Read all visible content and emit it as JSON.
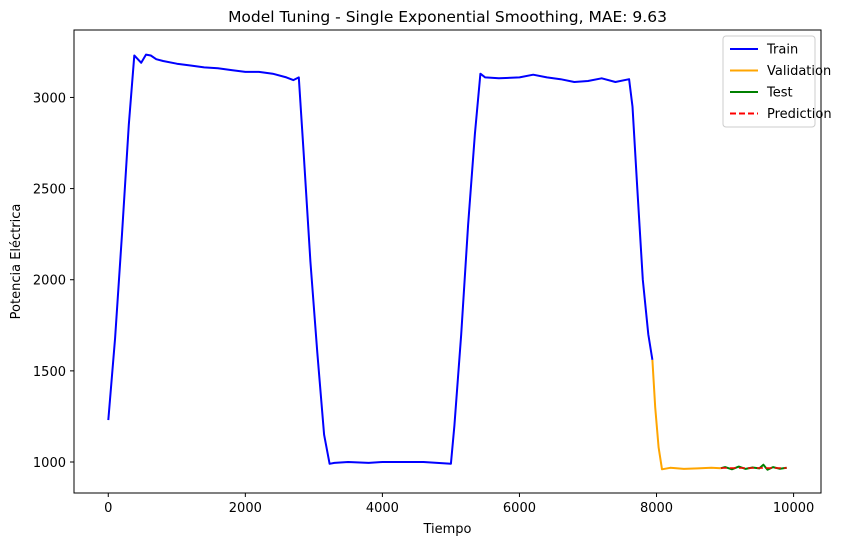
{
  "chart_data": {
    "type": "line",
    "title": "Model Tuning - Single Exponential Smoothing, MAE: 9.63",
    "xlabel": "Tiempo",
    "ylabel": "Potencia Eléctrica",
    "xlim": [
      -500,
      10400
    ],
    "ylim": [
      830,
      3370
    ],
    "xticks": [
      0,
      2000,
      4000,
      6000,
      8000,
      10000
    ],
    "yticks": [
      1000,
      1500,
      2000,
      2500,
      3000
    ],
    "grid": false,
    "legend_position": "top-right",
    "series": [
      {
        "name": "Train",
        "color": "#0000ff",
        "style": "solid",
        "x": [
          0,
          100,
          200,
          300,
          380,
          420,
          480,
          550,
          620,
          700,
          800,
          1000,
          1200,
          1400,
          1600,
          1800,
          2000,
          2200,
          2400,
          2600,
          2700,
          2780,
          2850,
          2950,
          3050,
          3150,
          3230,
          3300,
          3500,
          3800,
          4000,
          4300,
          4600,
          4800,
          5000,
          5050,
          5150,
          5250,
          5350,
          5430,
          5500,
          5700,
          6000,
          6200,
          6400,
          6600,
          6800,
          7000,
          7200,
          7400,
          7600,
          7650,
          7720,
          7800,
          7880,
          7940
        ],
        "y": [
          1230,
          1680,
          2250,
          2850,
          3230,
          3215,
          3190,
          3235,
          3230,
          3210,
          3200,
          3185,
          3175,
          3165,
          3160,
          3150,
          3140,
          3140,
          3130,
          3110,
          3095,
          3110,
          2700,
          2100,
          1600,
          1150,
          990,
          995,
          1000,
          995,
          1000,
          1000,
          1000,
          995,
          990,
          1200,
          1700,
          2300,
          2800,
          3130,
          3110,
          3105,
          3110,
          3125,
          3110,
          3100,
          3085,
          3090,
          3105,
          3085,
          3100,
          2950,
          2500,
          2000,
          1700,
          1560
        ]
      },
      {
        "name": "Validation",
        "color": "#ffa500",
        "style": "solid",
        "x": [
          7940,
          7980,
          8030,
          8080,
          8200,
          8400,
          8600,
          8800,
          8940
        ],
        "y": [
          1560,
          1300,
          1080,
          960,
          968,
          962,
          965,
          968,
          966
        ]
      },
      {
        "name": "Test",
        "color": "#008000",
        "style": "solid",
        "x": [
          8940,
          9000,
          9100,
          9200,
          9300,
          9400,
          9500,
          9560,
          9620,
          9700,
          9800,
          9900
        ],
        "y": [
          966,
          972,
          960,
          975,
          962,
          970,
          965,
          985,
          958,
          972,
          963,
          968
        ]
      },
      {
        "name": "Prediction",
        "color": "#ff0000",
        "style": "dashed",
        "x": [
          8940,
          9900
        ],
        "y": [
          967,
          967
        ]
      }
    ]
  }
}
